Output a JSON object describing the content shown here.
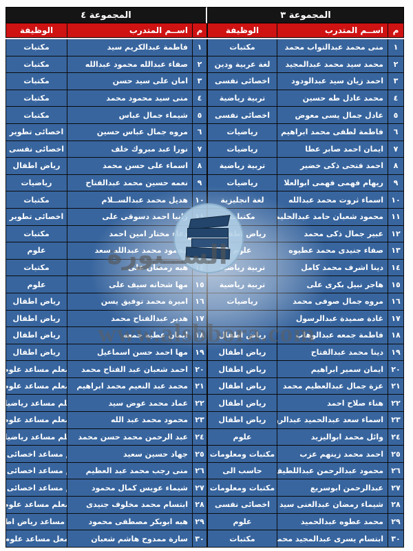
{
  "columns": {
    "num": "م",
    "name": "اســم المتدرب",
    "job": "الوظيفة"
  },
  "watermark": {
    "brand": "الســبورة",
    "url": "www.alsbbora.com"
  },
  "groups": [
    {
      "title": "المجموعة ٣",
      "rows": [
        {
          "num": "١",
          "name": "منى محمد عبدالتواب محمد",
          "job": "مكتبات"
        },
        {
          "num": "٢",
          "name": "محمد سيد محمد عبدالمجيد",
          "job": "لغة عربية ودين"
        },
        {
          "num": "٣",
          "name": "احمد زيان سيد عبدالودود",
          "job": "اخصائى نفسى"
        },
        {
          "num": "٤",
          "name": "محمد عادل طه حسين",
          "job": "تربية رياضية"
        },
        {
          "num": "٥",
          "name": "عادل جمال يسى معوض",
          "job": "اخصائى نفسى"
        },
        {
          "num": "٦",
          "name": "فاطمة لطفى محمد ابراهيم",
          "job": "رياضيات"
        },
        {
          "num": "٧",
          "name": "ايمان احمد صابر عطا",
          "job": "رياضيات"
        },
        {
          "num": "٨",
          "name": "احمد فتحى ذكى خضير",
          "job": "تربية رياضية"
        },
        {
          "num": "٩",
          "name": "ريهام فهمى فهمى ابوالعلا",
          "job": "رياضيات"
        },
        {
          "num": "١٠",
          "name": "اسماء ثروت محمد عبدالله",
          "job": "لغة انجليزية"
        },
        {
          "num": "١١",
          "name": "محمود شعبان حامد عبدالحليم",
          "job": "مكتبات"
        },
        {
          "num": "١٢",
          "name": "عبير جمال ذكى محمد",
          "job": "رياض اطفال"
        },
        {
          "num": "١٣",
          "name": "صفاء جنيدى محمد عطيوه",
          "job": "علوم"
        },
        {
          "num": "١٤",
          "name": "دينا اشرف محمد كامل",
          "job": "تربية رياضية"
        },
        {
          "num": "١٥",
          "name": "هاجر نبيل بكرى على",
          "job": "تربية رياضية"
        },
        {
          "num": "١٦",
          "name": "مروه جمال صوفى محمد",
          "job": "رياضيات"
        },
        {
          "num": "١٧",
          "name": "غادة صميدة عبدالرسول",
          "job": ""
        },
        {
          "num": "١٨",
          "name": "فاطمة جمعه عبدالوهاب",
          "job": "رياض اطفال"
        },
        {
          "num": "١٩",
          "name": "دينا محمد عبدالفتاح",
          "job": "رياض اطفال"
        },
        {
          "num": "٢٠",
          "name": "ايمان سمير ابراهيم",
          "job": "رياض اطفال"
        },
        {
          "num": "٢١",
          "name": "عزة جمال عبدالعظيم محمد",
          "job": "رياض اطفال"
        },
        {
          "num": "٢٢",
          "name": "هناء صلاح احمد",
          "job": "رياض اطفال"
        },
        {
          "num": "٢٣",
          "name": "اسماء سعد عبدالحميد عبدالرؤوف",
          "job": "رياض اطفال"
        },
        {
          "num": "٢٤",
          "name": "وائل محمد ابواليزيد",
          "job": "علوم"
        },
        {
          "num": "٢٥",
          "name": "احمد محمد زينهم عزب",
          "job": "مكتبات ومعلومات"
        },
        {
          "num": "٢٦",
          "name": "محمود عبدالرحمن عبداللطيف",
          "job": "حاسب الى"
        },
        {
          "num": "٢٧",
          "name": "عبدالرحمن ابوسريع",
          "job": "مكتبات ومعلومات"
        },
        {
          "num": "٢٨",
          "name": "شيماء رمضان عبدالغنى سيد",
          "job": "اخصائى نفسى"
        },
        {
          "num": "٢٩",
          "name": "محمد عطوه عبدالحميد",
          "job": "علوم"
        },
        {
          "num": "٣٠",
          "name": "ابتسام يسرى عبدالمجيد محمد",
          "job": "مكتبات"
        }
      ]
    },
    {
      "title": "المجموعة ٤",
      "rows": [
        {
          "num": "١",
          "name": "فاطمة عبدالكريم سيد",
          "job": "مكتبات"
        },
        {
          "num": "٢",
          "name": "صفاء عبدالله محمود عبدالله",
          "job": "مكتبات"
        },
        {
          "num": "٣",
          "name": "امان على سيد حسن",
          "job": "مكتبات"
        },
        {
          "num": "٤",
          "name": "منى سيد محمود محمد",
          "job": "مكتبات"
        },
        {
          "num": "٥",
          "name": "شيماء جمال عباس",
          "job": "مكتبات"
        },
        {
          "num": "٦",
          "name": "مروه جمال عباس حسين",
          "job": "اخصائى تطوير"
        },
        {
          "num": "٧",
          "name": "نورا عبد مبروك خلف",
          "job": "اخصائى نفسى"
        },
        {
          "num": "٨",
          "name": "اسماء على حسن محمد",
          "job": "رياض اطفال"
        },
        {
          "num": "٩",
          "name": "نعمه حسين محمد عبدالفتاح",
          "job": "رياضيات"
        },
        {
          "num": "١٠",
          "name": "هديل محمد عبدالســلام",
          "job": "مكتبات"
        },
        {
          "num": "١١",
          "name": "رانيا احمد دسوقى على",
          "job": "اخصائى تطوير"
        },
        {
          "num": "١٢",
          "name": "دعاء مختار امين احمد",
          "job": "مكتبات"
        },
        {
          "num": "١٣",
          "name": "محمود محمد عبدالله سعد",
          "job": "علوم"
        },
        {
          "num": "١٤",
          "name": "هبه رمضان على",
          "job": "مكتبات"
        },
        {
          "num": "١٥",
          "name": "مها شحاته سيف على",
          "job": "علوم"
        },
        {
          "num": "١٦",
          "name": "اميرة محمد توفيق يسن",
          "job": "رياض اطفال"
        },
        {
          "num": "١٧",
          "name": "هدير عبدالفتاح محمد",
          "job": "رياض اطفال"
        },
        {
          "num": "١٨",
          "name": "ايمان عطيه جمعه",
          "job": "رياض اطفال"
        },
        {
          "num": "١٩",
          "name": "مها احمد حسن اسماعيل",
          "job": "رياض اطفال"
        },
        {
          "num": "٢٠",
          "name": "احمد شعبان عبد الفتاح محمد",
          "job": "معلم مساعد علوم"
        },
        {
          "num": "٢١",
          "name": "محمد عبد النعيم محمد ابراهيم",
          "job": "معلم مساعد علوم"
        },
        {
          "num": "٢٢",
          "name": "عماد محمد عوض سيد",
          "job": "معلم مساعد رياضيات"
        },
        {
          "num": "٢٣",
          "name": "محمود محمد عبد الله",
          "job": "معلم مساعد علوم"
        },
        {
          "num": "٢٤",
          "name": "عبد الرحمن محمد حسن محمد",
          "job": "معلم مساعد رياضيات"
        },
        {
          "num": "٢٥",
          "name": "جهاد حسين سعيد",
          "job": "معلم مساعد اخصائى تطو"
        },
        {
          "num": "٢٦",
          "name": "منى رجب محمد عبد العظيم",
          "job": "معلم مساعد اخصائى تطو"
        },
        {
          "num": "٢٧",
          "name": "شيماء عويس كمال محمود",
          "job": "معلم مساعد اخصائى تطو"
        },
        {
          "num": "٢٨",
          "name": "ابتسام محمد مخلوف جنيدى",
          "job": "معلم مساعد علوم"
        },
        {
          "num": "٢٩",
          "name": "هبه ابوبكر مصطفى محمود",
          "job": "معل مساعد رياض اطفال"
        },
        {
          "num": "٣٠",
          "name": "سارة ممدوح هاشم شعبان",
          "job": "معل مساعد علوم"
        }
      ]
    }
  ]
}
